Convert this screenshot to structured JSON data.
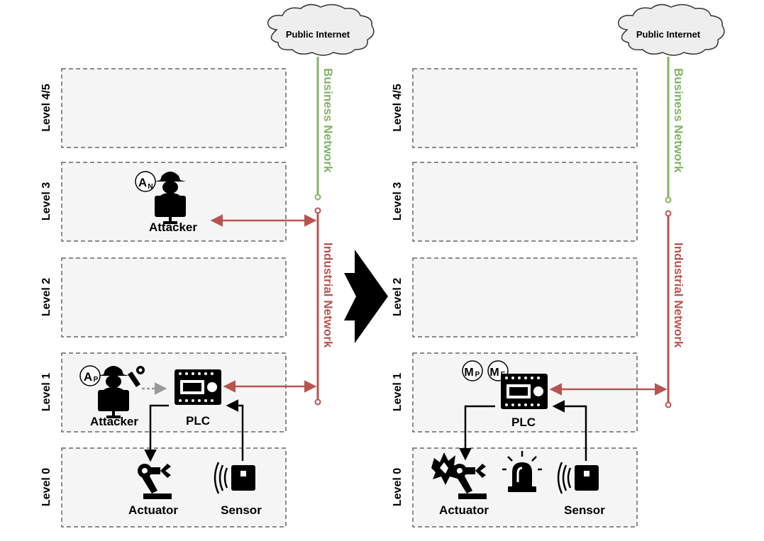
{
  "colors": {
    "business": "#82b366",
    "industrial": "#b85450",
    "level_fill": "#f5f5f5",
    "level_stroke": "#666666",
    "cloud_fill": "#eeeeee",
    "ink": "#000000",
    "dotted_arrow": "#999999"
  },
  "left": {
    "internet": "Public Internet",
    "business_network": "Business Network",
    "industrial_network": "Industrial Network",
    "levels": [
      "Level 4/5",
      "Level 3",
      "Level 2",
      "Level 1",
      "Level 0"
    ],
    "network_attacker": {
      "badge_main": "A",
      "badge_sub": "N",
      "label": "Attacker"
    },
    "physical_attacker": {
      "badge_main": "A",
      "badge_sub": "P",
      "label": "Attacker"
    },
    "plc": "PLC",
    "actuator": "Actuator",
    "sensor": "Sensor"
  },
  "right": {
    "internet": "Public Internet",
    "business_network": "Business Network",
    "industrial_network": "Industrial Network",
    "levels": [
      "Level 4/5",
      "Level 3",
      "Level 2",
      "Level 1",
      "Level 0"
    ],
    "badge_p": {
      "main": "M",
      "sub": "P"
    },
    "badge_e": {
      "main": "M",
      "sub": "E"
    },
    "plc": "PLC",
    "actuator": "Actuator",
    "sensor": "Sensor"
  },
  "icons": {
    "transition": "big-right-arrow-icon",
    "attacker": "hacker-icon",
    "plc": "plc-chip-icon",
    "actuator": "robot-arm-icon",
    "sensor": "sensor-wave-icon",
    "alarm": "siren-icon",
    "explosion": "explosion-icon",
    "cloud": "cloud-icon"
  }
}
